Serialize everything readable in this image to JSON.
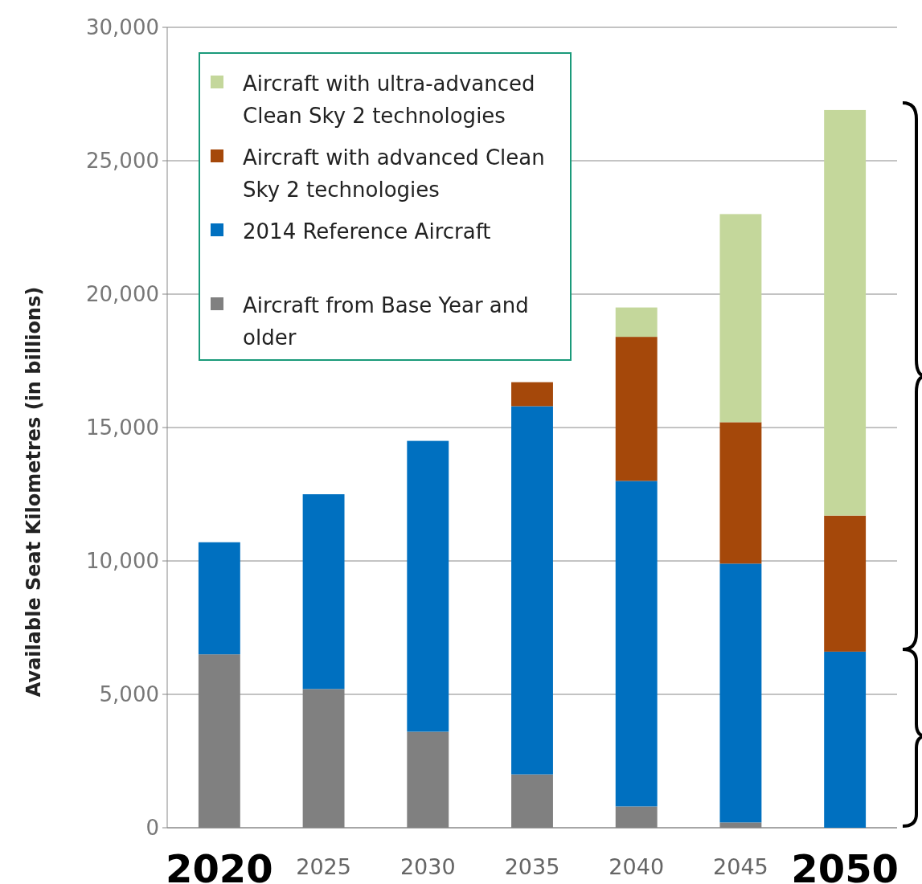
{
  "chart_data": {
    "type": "bar",
    "stacked": true,
    "ylabel": "Available Seat Kilometres (in billions)",
    "categories": [
      "2020",
      "2025",
      "2030",
      "2035",
      "2040",
      "2045",
      "2050"
    ],
    "series": [
      {
        "name": "Aircraft from Base Year and older",
        "color": "#808080",
        "values": [
          6500,
          5200,
          3600,
          2000,
          800,
          200,
          0
        ]
      },
      {
        "name": "2014 Reference Aircraft",
        "color": "#0070c0",
        "values": [
          4200,
          7300,
          10900,
          13800,
          12200,
          9700,
          6600
        ]
      },
      {
        "name": "Aircraft with advanced Clean Sky 2 technologies",
        "color": "#a5480a",
        "values": [
          0,
          0,
          0,
          900,
          5400,
          5300,
          5100
        ]
      },
      {
        "name": "Aircraft with ultra-advanced Clean Sky 2 technologies",
        "color": "#c4d79b",
        "values": [
          0,
          0,
          0,
          0,
          1100,
          7800,
          15200
        ]
      }
    ],
    "ylim": [
      0,
      30000
    ],
    "yticks": [
      {
        "value": 0,
        "label": "0"
      },
      {
        "value": 5000,
        "label": "5,000"
      },
      {
        "value": 10000,
        "label": "10,000"
      },
      {
        "value": 15000,
        "label": "15,000"
      },
      {
        "value": 20000,
        "label": "20,000"
      },
      {
        "value": 25000,
        "label": "25,000"
      },
      {
        "value": 30000,
        "label": "30,000"
      }
    ],
    "grid": "y",
    "legend": "top left"
  }
}
